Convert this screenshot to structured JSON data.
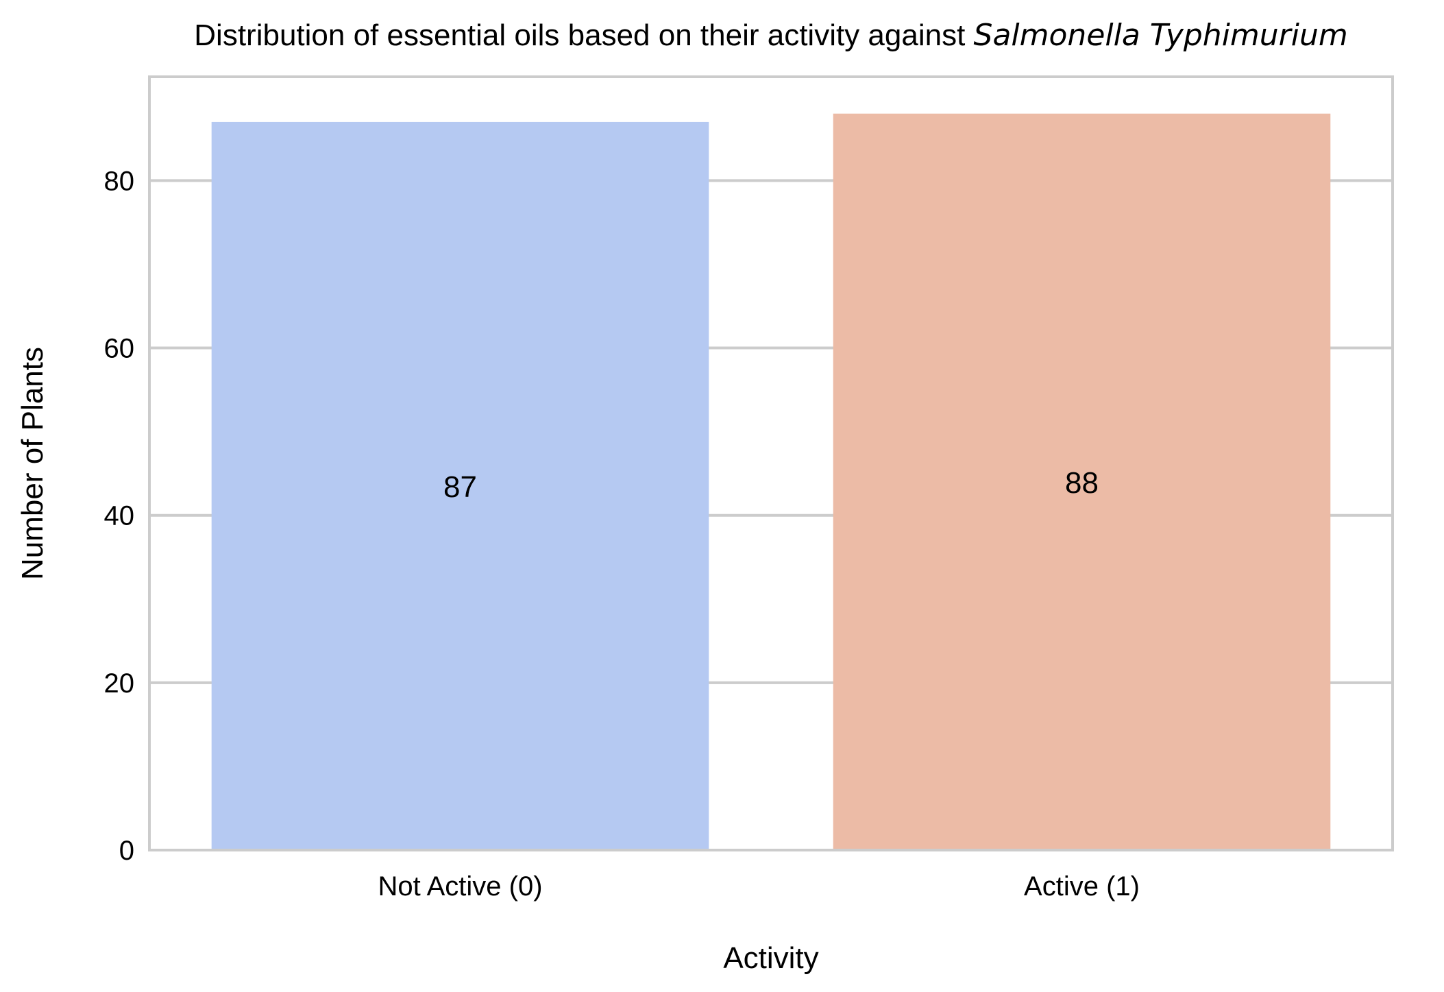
{
  "chart_data": {
    "type": "bar",
    "title": "Distribution of essential oils based on their activity against",
    "title_italic": "Salmonella Typhimurium",
    "xlabel": "Activity",
    "ylabel": "Number of Plants",
    "categories": [
      "Not Active (0)",
      "Active (1)"
    ],
    "values": [
      87,
      88
    ],
    "value_labels": [
      "87",
      "88"
    ],
    "colors": [
      "#b5c9f2",
      "#ecbba6"
    ],
    "ylim": [
      0,
      92.4
    ],
    "yticks": [
      0,
      20,
      40,
      60,
      80
    ],
    "ytick_labels": [
      "0",
      "20",
      "40",
      "60",
      "80"
    ],
    "grid": "horizontal",
    "grid_color": "#cccccc",
    "frame_color": "#cccccc"
  }
}
